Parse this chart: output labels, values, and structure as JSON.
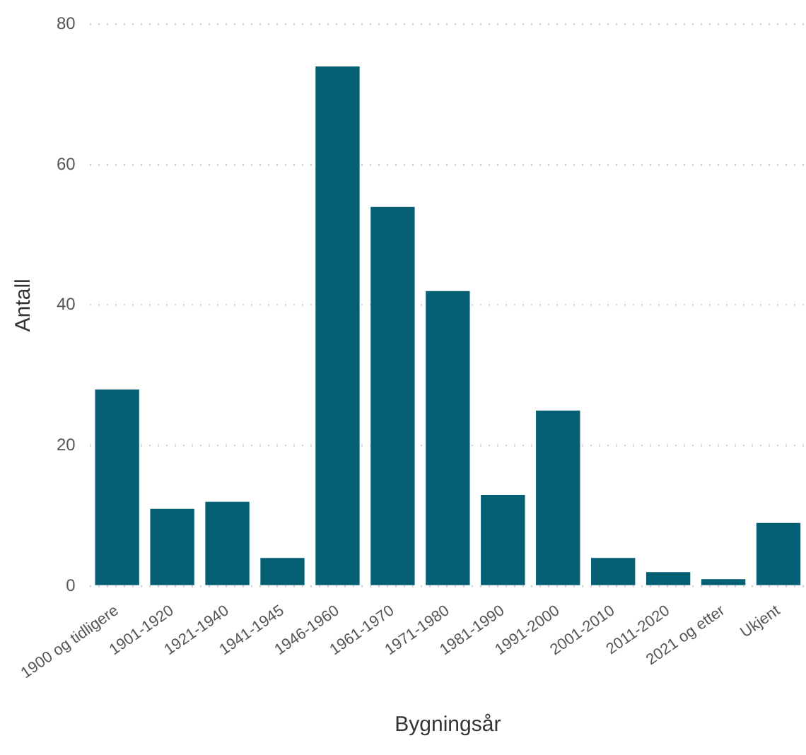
{
  "chart_data": {
    "type": "bar",
    "xlabel": "Bygningsår",
    "ylabel": "Antall",
    "categories": [
      "1900 og tidligere",
      "1901-1920",
      "1921-1940",
      "1941-1945",
      "1946-1960",
      "1961-1970",
      "1971-1980",
      "1981-1990",
      "1991-2000",
      "2001-2010",
      "2011-2020",
      "2021 og etter",
      "Ukjent"
    ],
    "values": [
      28,
      11,
      12,
      4,
      74,
      54,
      42,
      13,
      25,
      4,
      2,
      1,
      9
    ],
    "color": "#066075",
    "ylim": [
      0,
      80
    ],
    "yticks": [
      0,
      20,
      40,
      60,
      80
    ],
    "grid": "y",
    "legend": false
  }
}
